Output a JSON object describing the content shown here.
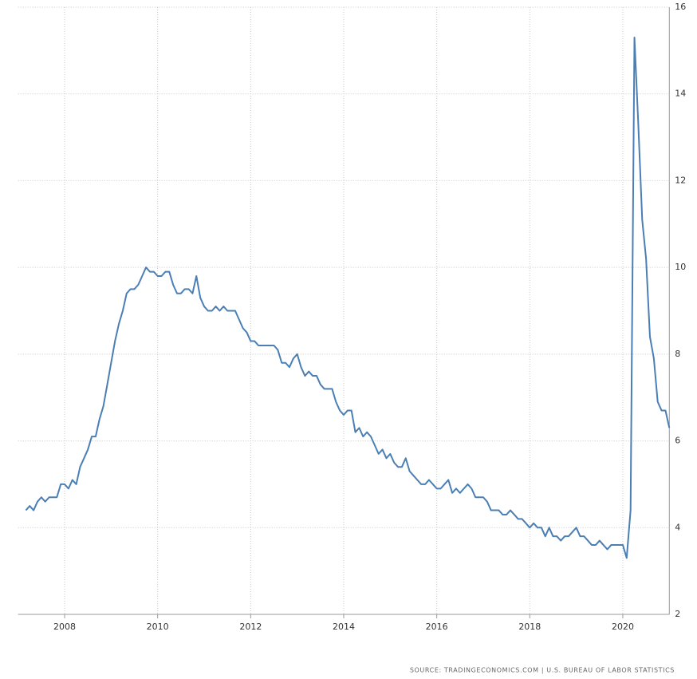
{
  "chart_data": {
    "type": "line",
    "source": "SOURCE: TRADINGECONOMICS.COM | U.S. BUREAU OF LABOR STATISTICS",
    "x": [
      2007.167,
      2007.25,
      2007.333,
      2007.417,
      2007.5,
      2007.583,
      2007.667,
      2007.75,
      2007.833,
      2007.917,
      2008.0,
      2008.083,
      2008.167,
      2008.25,
      2008.333,
      2008.417,
      2008.5,
      2008.583,
      2008.667,
      2008.75,
      2008.833,
      2008.917,
      2009.0,
      2009.083,
      2009.167,
      2009.25,
      2009.333,
      2009.417,
      2009.5,
      2009.583,
      2009.667,
      2009.75,
      2009.833,
      2009.917,
      2010.0,
      2010.083,
      2010.167,
      2010.25,
      2010.333,
      2010.417,
      2010.5,
      2010.583,
      2010.667,
      2010.75,
      2010.833,
      2010.917,
      2011.0,
      2011.083,
      2011.167,
      2011.25,
      2011.333,
      2011.417,
      2011.5,
      2011.583,
      2011.667,
      2011.75,
      2011.833,
      2011.917,
      2012.0,
      2012.083,
      2012.167,
      2012.25,
      2012.333,
      2012.417,
      2012.5,
      2012.583,
      2012.667,
      2012.75,
      2012.833,
      2012.917,
      2013.0,
      2013.083,
      2013.167,
      2013.25,
      2013.333,
      2013.417,
      2013.5,
      2013.583,
      2013.667,
      2013.75,
      2013.833,
      2013.917,
      2014.0,
      2014.083,
      2014.167,
      2014.25,
      2014.333,
      2014.417,
      2014.5,
      2014.583,
      2014.667,
      2014.75,
      2014.833,
      2014.917,
      2015.0,
      2015.083,
      2015.167,
      2015.25,
      2015.333,
      2015.417,
      2015.5,
      2015.583,
      2015.667,
      2015.75,
      2015.833,
      2015.917,
      2016.0,
      2016.083,
      2016.167,
      2016.25,
      2016.333,
      2016.417,
      2016.5,
      2016.583,
      2016.667,
      2016.75,
      2016.833,
      2016.917,
      2017.0,
      2017.083,
      2017.167,
      2017.25,
      2017.333,
      2017.417,
      2017.5,
      2017.583,
      2017.667,
      2017.75,
      2017.833,
      2017.917,
      2018.0,
      2018.083,
      2018.167,
      2018.25,
      2018.333,
      2018.417,
      2018.5,
      2018.583,
      2018.667,
      2018.75,
      2018.833,
      2018.917,
      2019.0,
      2019.083,
      2019.167,
      2019.25,
      2019.333,
      2019.417,
      2019.5,
      2019.583,
      2019.667,
      2019.75,
      2019.833,
      2019.917,
      2020.0,
      2020.083,
      2020.167,
      2020.25,
      2020.333,
      2020.417,
      2020.5,
      2020.583,
      2020.667,
      2020.75,
      2020.833,
      2020.917,
      2021.0
    ],
    "series": [
      {
        "color": "#4a7fb5",
        "values": [
          4.4,
          4.5,
          4.4,
          4.6,
          4.7,
          4.6,
          4.7,
          4.7,
          4.7,
          5.0,
          5.0,
          4.9,
          5.1,
          5.0,
          5.4,
          5.6,
          5.8,
          6.1,
          6.1,
          6.5,
          6.8,
          7.3,
          7.8,
          8.3,
          8.7,
          9.0,
          9.4,
          9.5,
          9.5,
          9.6,
          9.8,
          10.0,
          9.9,
          9.9,
          9.8,
          9.8,
          9.9,
          9.9,
          9.6,
          9.4,
          9.4,
          9.5,
          9.5,
          9.4,
          9.8,
          9.3,
          9.1,
          9.0,
          9.0,
          9.1,
          9.0,
          9.1,
          9.0,
          9.0,
          9.0,
          8.8,
          8.6,
          8.5,
          8.3,
          8.3,
          8.2,
          8.2,
          8.2,
          8.2,
          8.2,
          8.1,
          7.8,
          7.8,
          7.7,
          7.9,
          8.0,
          7.7,
          7.5,
          7.6,
          7.5,
          7.5,
          7.3,
          7.2,
          7.2,
          7.2,
          6.9,
          6.7,
          6.6,
          6.7,
          6.7,
          6.2,
          6.3,
          6.1,
          6.2,
          6.1,
          5.9,
          5.7,
          5.8,
          5.6,
          5.7,
          5.5,
          5.4,
          5.4,
          5.6,
          5.3,
          5.2,
          5.1,
          5.0,
          5.0,
          5.1,
          5.0,
          4.9,
          4.9,
          5.0,
          5.1,
          4.8,
          4.9,
          4.8,
          4.9,
          5.0,
          4.9,
          4.7,
          4.7,
          4.7,
          4.6,
          4.4,
          4.4,
          4.4,
          4.3,
          4.3,
          4.4,
          4.3,
          4.2,
          4.2,
          4.1,
          4.0,
          4.1,
          4.0,
          4.0,
          3.8,
          4.0,
          3.8,
          3.8,
          3.7,
          3.8,
          3.8,
          3.9,
          4.0,
          3.8,
          3.8,
          3.7,
          3.6,
          3.6,
          3.7,
          3.6,
          3.5,
          3.6,
          3.6,
          3.6,
          3.6,
          3.3,
          4.4,
          15.3,
          13.3,
          11.1,
          10.2,
          8.4,
          7.9,
          6.9,
          6.7,
          6.7,
          6.3
        ]
      }
    ],
    "xlim": [
      2007,
      2021
    ],
    "xticks": [
      2008,
      2010,
      2012,
      2014,
      2016,
      2018,
      2020
    ],
    "ylim": [
      2,
      16
    ],
    "yticks": [
      2,
      4,
      6,
      8,
      10,
      12,
      14,
      16
    ],
    "grid": true
  }
}
